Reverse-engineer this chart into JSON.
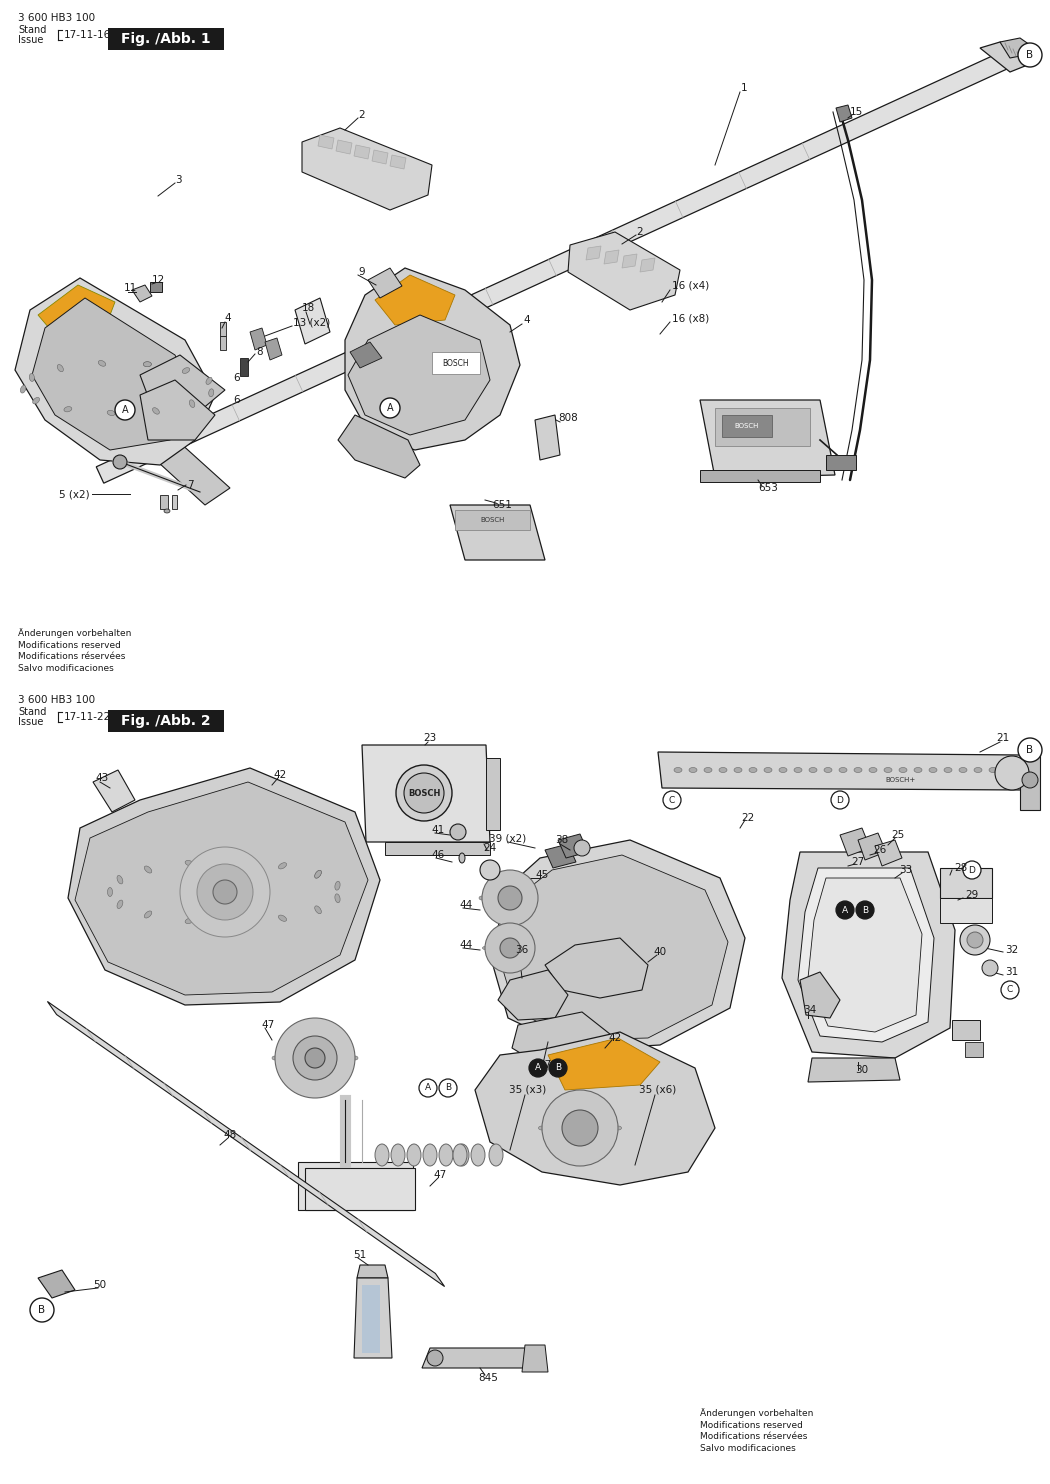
{
  "page_bg": "#ffffff",
  "fig1_label": "3 600 HB3 100",
  "fig1_stand": "Stand",
  "fig1_issue": "Issue",
  "fig1_date": "17-11-16",
  "fig1_title": "Fig. /Abb. 1",
  "fig2_label": "3 600 HB3 100",
  "fig2_stand": "Stand",
  "fig2_issue": "Issue",
  "fig2_date": "17-11-22",
  "fig2_title": "Fig. /Abb. 2",
  "footer_text1": "Änderungen vorbehalten\nModifications reserved\nModifications réservées\nSalvo modificaciones",
  "footer_text2": "Änderungen vorbehalten\nModifications reserved\nModifications réservées\nSalvo modificaciones",
  "lc": "#1a1a1a",
  "tc": "#1a1a1a",
  "gc": "#888888",
  "fig_title_bg": "#1a1a1a",
  "fig_title_fg": "#ffffff",
  "part_fill": "#e8e8e8",
  "part_dark": "#b0b0b0",
  "part_mid": "#d0d0d0",
  "chain_fill": "#cccccc",
  "orange": "#e8a020"
}
